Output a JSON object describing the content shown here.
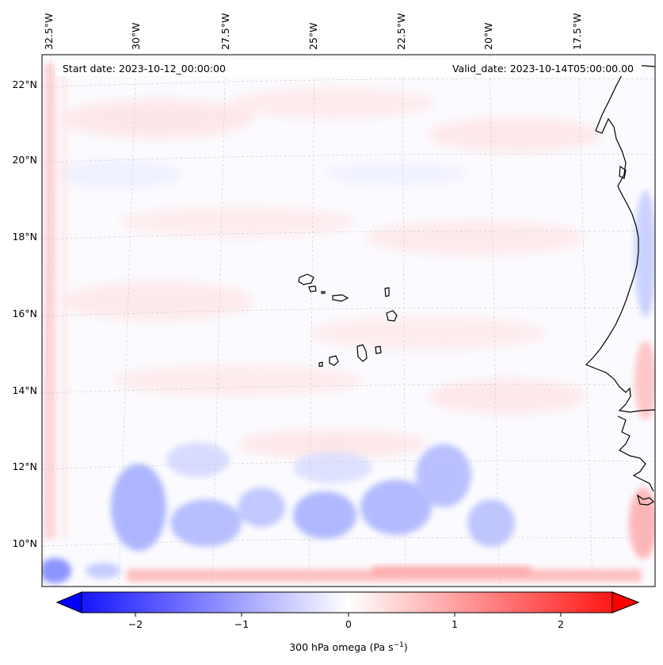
{
  "map": {
    "lon_labels": [
      "32.5°W",
      "30°W",
      "27.5°W",
      "25°W",
      "22.5°W",
      "20°W",
      "17.5°W"
    ],
    "lat_labels": [
      "22°N",
      "20°N",
      "18°N",
      "16°N",
      "14°N",
      "12°N",
      "10°N"
    ],
    "start_date": "Start date: 2023-10-12_00:00:00",
    "valid_date": "Valid_date: 2023-10-14T05:00:00.00"
  },
  "colorbar": {
    "ticks": [
      "−2",
      "−1",
      "0",
      "1",
      "2"
    ],
    "label": "300 hPa omega (Pa s",
    "label_superscript": "−1",
    "label_suffix": ")",
    "vmin": -2.6,
    "vmax": 2.6,
    "min_color": "#0000ff",
    "mid_color": "#ffffff",
    "max_color": "#ff0000"
  }
}
